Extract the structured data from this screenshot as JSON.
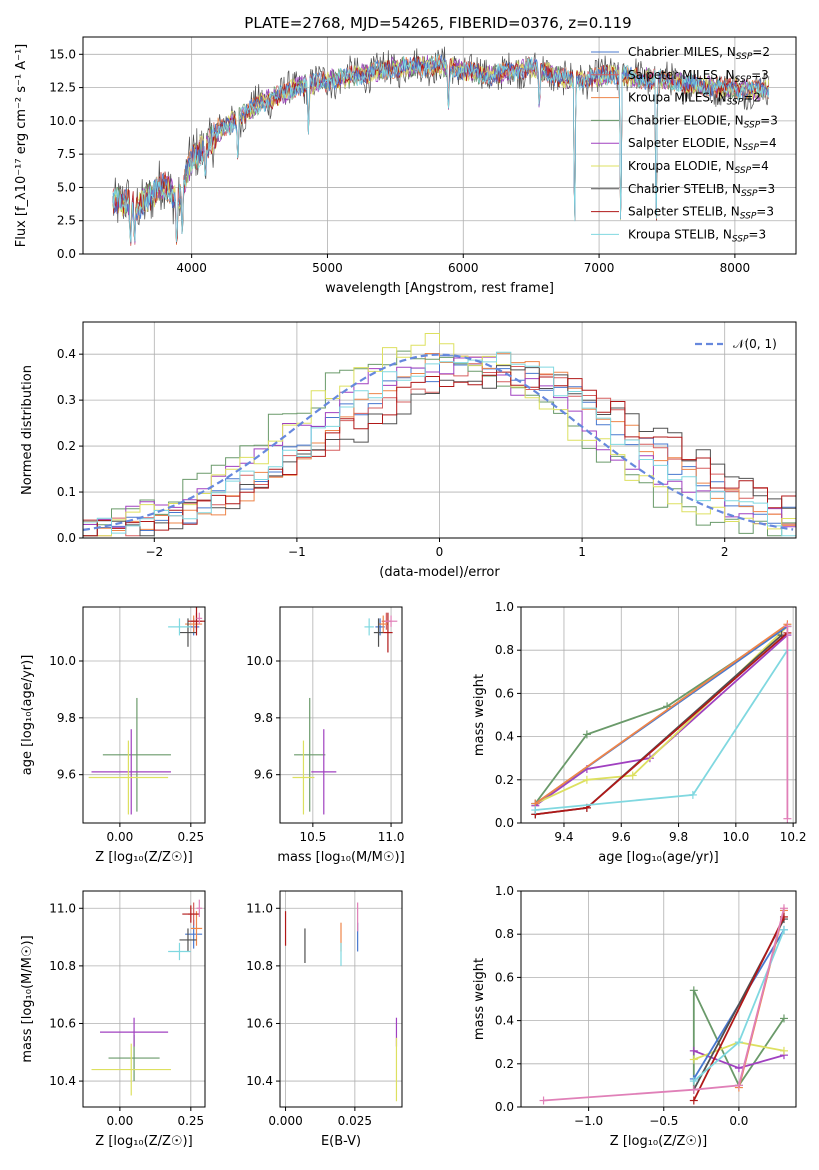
{
  "figure_title": "PLATE=2768, MJD=54265, FIBERID=0376, z=0.119",
  "colors": {
    "Chabrier MILES": "#4878cf",
    "Salpeter MILES": "#d65f5f",
    "Kroupa MILES": "#ee854a",
    "Chabrier ELODIE": "#6a9a6a",
    "Salpeter ELODIE": "#a040c0",
    "Kroupa ELODIE": "#dde060",
    "Chabrier STELIB": "#505050",
    "Salpeter STELIB": "#b01818",
    "Kroupa STELIB": "#80d8e0",
    "extra": "#e080b8",
    "normal": "#6688dd"
  },
  "chart_data": [
    {
      "id": "spectrum",
      "type": "line",
      "title": "PLATE=2768, MJD=54265, FIBERID=0376, z=0.119",
      "xlabel": "wavelength [Angstrom, rest frame]",
      "ylabel": "Flux [f_λ10⁻¹⁷ erg cm⁻² s⁻¹ A⁻¹]",
      "xlim": [
        3200,
        8450
      ],
      "ylim": [
        0,
        16.3
      ],
      "xticks": [
        4000,
        5000,
        6000,
        7000,
        8000
      ],
      "yticks": [
        0.0,
        2.5,
        5.0,
        7.5,
        10.0,
        12.5,
        15.0
      ],
      "ytick_labels": [
        "0.0",
        "2.5",
        "5.0",
        "7.5",
        "10.0",
        "12.5",
        "15.0"
      ],
      "grid": true,
      "legend_position": "right",
      "legend": [
        {
          "label": "Chabrier MILES, N",
          "sub": "SSP",
          "suffix": "=2",
          "key": "Chabrier MILES"
        },
        {
          "label": "Salpeter MILES, N",
          "sub": "SSP",
          "suffix": "=3",
          "key": "Salpeter MILES"
        },
        {
          "label": "Kroupa MILES, N",
          "sub": "SSP",
          "suffix": "=2",
          "key": "Kroupa MILES"
        },
        {
          "label": "Chabrier ELODIE, N",
          "sub": "SSP",
          "suffix": "=3",
          "key": "Chabrier ELODIE"
        },
        {
          "label": "Salpeter ELODIE, N",
          "sub": "SSP",
          "suffix": "=4",
          "key": "Salpeter ELODIE"
        },
        {
          "label": "Kroupa ELODIE, N",
          "sub": "SSP",
          "suffix": "=4",
          "key": "Kroupa ELODIE"
        },
        {
          "label": "Chabrier STELIB, N",
          "sub": "SSP",
          "suffix": "=3",
          "key": "Chabrier STELIB"
        },
        {
          "label": "Salpeter STELIB, N",
          "sub": "SSP",
          "suffix": "=3",
          "key": "Salpeter STELIB"
        },
        {
          "label": "Kroupa STELIB, N",
          "sub": "SSP",
          "suffix": "=3",
          "key": "Kroupa STELIB"
        }
      ],
      "continuum": [
        [
          3420,
          4.0
        ],
        [
          3600,
          3.6
        ],
        [
          3800,
          5.2
        ],
        [
          3900,
          4.0
        ],
        [
          4000,
          7.0
        ],
        [
          4200,
          9.2
        ],
        [
          4500,
          11.3
        ],
        [
          4800,
          12.6
        ],
        [
          5000,
          13.0
        ],
        [
          5300,
          13.6
        ],
        [
          5500,
          14.0
        ],
        [
          5800,
          14.2
        ],
        [
          6000,
          13.8
        ],
        [
          6200,
          13.4
        ],
        [
          6500,
          14.0
        ],
        [
          6800,
          13.0
        ],
        [
          7100,
          13.5
        ],
        [
          7500,
          13.0
        ],
        [
          7800,
          12.6
        ],
        [
          8000,
          12.4
        ],
        [
          8250,
          12.3
        ]
      ],
      "dips": [
        [
          3550,
          0.0
        ],
        [
          3580,
          0.2
        ],
        [
          3890,
          0.0
        ],
        [
          3930,
          1.5
        ],
        [
          4100,
          5.5
        ],
        [
          4340,
          6.5
        ],
        [
          4860,
          9.0
        ],
        [
          5890,
          10.2
        ],
        [
          6560,
          10.5
        ],
        [
          6820,
          0.0
        ],
        [
          7160,
          0.0
        ],
        [
          7420,
          0.0
        ]
      ]
    },
    {
      "id": "residuals",
      "type": "histogram",
      "xlabel": "(data-model)/error",
      "ylabel": "Normed distribution",
      "xlim": [
        -2.5,
        2.5
      ],
      "ylim": [
        0,
        0.47
      ],
      "xticks": [
        -2,
        -1,
        0,
        1,
        2
      ],
      "xtick_labels": [
        "−2",
        "−1",
        "0",
        "1",
        "2"
      ],
      "yticks": [
        0.0,
        0.1,
        0.2,
        0.3,
        0.4
      ],
      "ytick_labels": [
        "0.0",
        "0.1",
        "0.2",
        "0.3",
        "0.4"
      ],
      "grid": true,
      "legend_position": "top-right",
      "legend_label": "𝒩(0, 1)",
      "bins": 50
    },
    {
      "id": "age_vs_Z",
      "type": "scatter",
      "xlabel": "Z [log₁₀(Z/Z☉)]",
      "ylabel": "age  [log₁₀(age/yr)]",
      "xlim": [
        -0.13,
        0.3
      ],
      "ylim": [
        9.43,
        10.19
      ],
      "xticks": [
        0.0,
        0.25
      ],
      "xtick_labels": [
        "0.00",
        "0.25"
      ],
      "yticks": [
        9.6,
        9.8,
        10.0
      ],
      "ytick_labels": [
        "9.6",
        "9.8",
        "10.0"
      ],
      "grid": true,
      "points": [
        {
          "key": "Chabrier ELODIE",
          "x": 0.06,
          "y": 9.67,
          "xerr": 0.12,
          "yerr": 0.2
        },
        {
          "key": "Salpeter ELODIE",
          "x": 0.04,
          "y": 9.61,
          "xerr": 0.14,
          "yerr": 0.15
        },
        {
          "key": "Kroupa ELODIE",
          "x": 0.03,
          "y": 9.59,
          "xerr": 0.14,
          "yerr": 0.13
        },
        {
          "key": "Chabrier MILES",
          "x": 0.26,
          "y": 10.12,
          "xerr": 0.02,
          "yerr": 0.03
        },
        {
          "key": "Salpeter MILES",
          "x": 0.27,
          "y": 10.14,
          "xerr": 0.02,
          "yerr": 0.03
        },
        {
          "key": "Kroupa MILES",
          "x": 0.26,
          "y": 10.13,
          "xerr": 0.03,
          "yerr": 0.03
        },
        {
          "key": "Chabrier STELIB",
          "x": 0.24,
          "y": 10.1,
          "xerr": 0.03,
          "yerr": 0.05
        },
        {
          "key": "Salpeter STELIB",
          "x": 0.27,
          "y": 10.14,
          "xerr": 0.03,
          "yerr": 0.05
        },
        {
          "key": "Kroupa STELIB",
          "x": 0.21,
          "y": 10.12,
          "xerr": 0.04,
          "yerr": 0.03
        },
        {
          "key": "extra",
          "x": 0.28,
          "y": 10.15,
          "xerr": 0.01,
          "yerr": 0.02
        }
      ]
    },
    {
      "id": "age_vs_mass",
      "type": "scatter",
      "xlabel": "mass [log₁₀(M/M☉)]",
      "ylabel": "",
      "xlim": [
        10.29,
        11.07
      ],
      "ylim": [
        9.43,
        10.19
      ],
      "xticks": [
        10.5,
        11.0
      ],
      "xtick_labels": [
        "10.5",
        "11.0"
      ],
      "yticks": [
        9.6,
        9.8,
        10.0
      ],
      "ytick_labels": [
        "9.6",
        "9.8",
        "10.0"
      ],
      "grid": true,
      "points": [
        {
          "key": "Chabrier ELODIE",
          "x": 10.48,
          "y": 9.67,
          "xerr": 0.1,
          "yerr": 0.2
        },
        {
          "key": "Salpeter ELODIE",
          "x": 10.57,
          "y": 9.61,
          "xerr": 0.08,
          "yerr": 0.15
        },
        {
          "key": "Kroupa ELODIE",
          "x": 10.44,
          "y": 9.59,
          "xerr": 0.07,
          "yerr": 0.13
        },
        {
          "key": "Chabrier MILES",
          "x": 10.93,
          "y": 10.12,
          "xerr": 0.03,
          "yerr": 0.03
        },
        {
          "key": "Salpeter MILES",
          "x": 10.97,
          "y": 10.14,
          "xerr": 0.03,
          "yerr": 0.03
        },
        {
          "key": "Kroupa MILES",
          "x": 10.95,
          "y": 10.13,
          "xerr": 0.03,
          "yerr": 0.03
        },
        {
          "key": "Chabrier STELIB",
          "x": 10.92,
          "y": 10.1,
          "xerr": 0.03,
          "yerr": 0.05
        },
        {
          "key": "Salpeter STELIB",
          "x": 10.98,
          "y": 10.1,
          "xerr": 0.03,
          "yerr": 0.07
        },
        {
          "key": "Kroupa STELIB",
          "x": 10.86,
          "y": 10.12,
          "xerr": 0.03,
          "yerr": 0.03
        },
        {
          "key": "extra",
          "x": 11.0,
          "y": 10.14,
          "xerr": 0.04,
          "yerr": 0.02
        }
      ]
    },
    {
      "id": "weight_vs_age",
      "type": "line",
      "xlabel": "age  [log₁₀(age/yr)]",
      "ylabel": "mass weight",
      "xlim": [
        9.25,
        10.21
      ],
      "ylim": [
        0,
        1.0
      ],
      "xticks": [
        9.4,
        9.6,
        9.8,
        10.0,
        10.2
      ],
      "xtick_labels": [
        "9.4",
        "9.6",
        "9.8",
        "10.0",
        "10.2"
      ],
      "yticks": [
        0.0,
        0.2,
        0.4,
        0.6,
        0.8,
        1.0
      ],
      "ytick_labels": [
        "0.0",
        "0.2",
        "0.4",
        "0.6",
        "0.8",
        "1.0"
      ],
      "grid": true,
      "series": [
        {
          "key": "Chabrier ELODIE",
          "x": [
            9.3,
            9.48,
            9.76,
            10.18
          ],
          "y": [
            0.09,
            0.41,
            0.54,
            0.91
          ]
        },
        {
          "key": "Salpeter ELODIE",
          "x": [
            9.3,
            9.48,
            9.7,
            10.18
          ],
          "y": [
            0.08,
            0.25,
            0.3,
            0.87
          ]
        },
        {
          "key": "Kroupa ELODIE",
          "x": [
            9.3,
            9.48,
            9.64,
            10.18
          ],
          "y": [
            0.09,
            0.2,
            0.22,
            0.91
          ]
        },
        {
          "key": "Chabrier MILES",
          "x": [
            9.3,
            10.18
          ],
          "y": [
            0.09,
            0.91
          ]
        },
        {
          "key": "Kroupa MILES",
          "x": [
            9.3,
            10.18
          ],
          "y": [
            0.09,
            0.92
          ]
        },
        {
          "key": "Chabrier STELIB",
          "x": [
            9.3,
            9.48,
            10.16
          ],
          "y": [
            0.04,
            0.07,
            0.87
          ]
        },
        {
          "key": "Salpeter STELIB",
          "x": [
            9.3,
            9.48,
            10.18
          ],
          "y": [
            0.04,
            0.07,
            0.88
          ]
        },
        {
          "key": "Kroupa STELIB",
          "x": [
            9.3,
            9.85,
            10.18
          ],
          "y": [
            0.06,
            0.13,
            0.8
          ]
        },
        {
          "key": "extra",
          "x": [
            10.18,
            10.18
          ],
          "y": [
            0.02,
            0.91
          ]
        }
      ]
    },
    {
      "id": "mass_vs_Z",
      "type": "scatter",
      "xlabel": "Z [log₁₀(Z/Z☉)]",
      "ylabel": "mass [log₁₀(M/M☉)]",
      "xlim": [
        -0.13,
        0.3
      ],
      "ylim": [
        10.31,
        11.06
      ],
      "xticks": [
        0.0,
        0.25
      ],
      "xtick_labels": [
        "0.00",
        "0.25"
      ],
      "yticks": [
        10.4,
        10.6,
        10.8,
        11.0
      ],
      "ytick_labels": [
        "10.4",
        "10.6",
        "10.8",
        "11.0"
      ],
      "grid": true,
      "points": [
        {
          "key": "Chabrier ELODIE",
          "x": 0.05,
          "y": 10.48,
          "xerr": 0.09,
          "yerr": 0.08
        },
        {
          "key": "Salpeter ELODIE",
          "x": 0.05,
          "y": 10.57,
          "xerr": 0.12,
          "yerr": 0.05
        },
        {
          "key": "Kroupa ELODIE",
          "x": 0.04,
          "y": 10.44,
          "xerr": 0.14,
          "yerr": 0.09
        },
        {
          "key": "Chabrier MILES",
          "x": 0.26,
          "y": 10.91,
          "xerr": 0.03,
          "yerr": 0.05
        },
        {
          "key": "Salpeter MILES",
          "x": 0.26,
          "y": 10.98,
          "xerr": 0.02,
          "yerr": 0.04
        },
        {
          "key": "Kroupa MILES",
          "x": 0.27,
          "y": 10.93,
          "xerr": 0.02,
          "yerr": 0.06
        },
        {
          "key": "Chabrier STELIB",
          "x": 0.24,
          "y": 10.89,
          "xerr": 0.03,
          "yerr": 0.04
        },
        {
          "key": "Salpeter STELIB",
          "x": 0.25,
          "y": 10.98,
          "xerr": 0.03,
          "yerr": 0.03
        },
        {
          "key": "Kroupa STELIB",
          "x": 0.21,
          "y": 10.85,
          "xerr": 0.04,
          "yerr": 0.03
        },
        {
          "key": "extra",
          "x": 0.28,
          "y": 11.0,
          "xerr": 0.01,
          "yerr": 0.03
        }
      ]
    },
    {
      "id": "mass_vs_ebv",
      "type": "scatter",
      "xlabel": "E(B-V)",
      "ylabel": "",
      "xlim": [
        -0.002,
        0.042
      ],
      "ylim": [
        10.31,
        11.06
      ],
      "xticks": [
        0.0,
        0.025
      ],
      "xtick_labels": [
        "0.000",
        "0.025"
      ],
      "yticks": [
        10.4,
        10.6,
        10.8,
        11.0
      ],
      "ytick_labels": [
        "10.4",
        "10.6",
        "10.8",
        "11.0"
      ],
      "grid": true,
      "points": [
        {
          "key": "Salpeter STELIB",
          "x": 0.0,
          "y": 10.93,
          "yerr": 0.06
        },
        {
          "key": "Chabrier STELIB",
          "x": 0.007,
          "y": 10.87,
          "yerr": 0.06
        },
        {
          "key": "Kroupa MILES",
          "x": 0.02,
          "y": 10.9,
          "yerr": 0.05
        },
        {
          "key": "Kroupa STELIB",
          "x": 0.02,
          "y": 10.84,
          "yerr": 0.04
        },
        {
          "key": "Chabrier MILES",
          "x": 0.026,
          "y": 10.9,
          "yerr": 0.05
        },
        {
          "key": "extra",
          "x": 0.026,
          "y": 10.97,
          "yerr": 0.05
        },
        {
          "key": "Salpeter ELODIE",
          "x": 0.04,
          "y": 10.57,
          "yerr": 0.05
        },
        {
          "key": "Kroupa ELODIE",
          "x": 0.04,
          "y": 10.44,
          "yerr": 0.11
        }
      ]
    },
    {
      "id": "weight_vs_Z",
      "type": "line",
      "xlabel": "Z [log₁₀(Z/Z☉)]",
      "ylabel": "mass weight",
      "xlim": [
        -1.45,
        0.38
      ],
      "ylim": [
        0,
        1.0
      ],
      "xticks": [
        -1.0,
        -0.5,
        0.0
      ],
      "xtick_labels": [
        "−1.0",
        "−0.5",
        "0.0"
      ],
      "yticks": [
        0.0,
        0.2,
        0.4,
        0.6,
        0.8,
        1.0
      ],
      "ytick_labels": [
        "0.0",
        "0.2",
        "0.4",
        "0.6",
        "0.8",
        "1.0"
      ],
      "grid": true,
      "series": [
        {
          "key": "Chabrier ELODIE",
          "x": [
            -0.3,
            -0.3,
            0.0,
            0.3
          ],
          "y": [
            0.08,
            0.54,
            0.1,
            0.41
          ]
        },
        {
          "key": "Salpeter ELODIE",
          "x": [
            -0.3,
            0.0,
            0.3
          ],
          "y": [
            0.26,
            0.18,
            0.24
          ]
        },
        {
          "key": "Kroupa ELODIE",
          "x": [
            -0.3,
            0.0,
            0.3
          ],
          "y": [
            0.22,
            0.3,
            0.26
          ]
        },
        {
          "key": "Chabrier MILES",
          "x": [
            -0.3,
            0.3
          ],
          "y": [
            0.13,
            0.82
          ]
        },
        {
          "key": "Kroupa MILES",
          "x": [
            0.0,
            0.3
          ],
          "y": [
            0.09,
            0.91
          ]
        },
        {
          "key": "Chabrier STELIB",
          "x": [
            -0.3,
            0.3
          ],
          "y": [
            0.08,
            0.87
          ]
        },
        {
          "key": "Salpeter STELIB",
          "x": [
            -0.3,
            0.3
          ],
          "y": [
            0.03,
            0.88
          ]
        },
        {
          "key": "Kroupa STELIB",
          "x": [
            -0.3,
            0.0,
            0.3
          ],
          "y": [
            0.12,
            0.3,
            0.82
          ]
        },
        {
          "key": "extra",
          "x": [
            -1.3,
            -0.3,
            0.0,
            0.3
          ],
          "y": [
            0.03,
            0.08,
            0.1,
            0.92
          ]
        }
      ]
    }
  ]
}
